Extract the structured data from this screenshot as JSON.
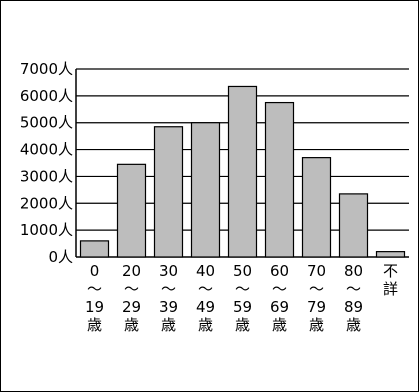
{
  "chart_data": {
    "type": "bar",
    "title": "",
    "xlabel": "",
    "ylabel": "",
    "ylim": [
      0,
      7000
    ],
    "yticks": [
      0,
      1000,
      2000,
      3000,
      4000,
      5000,
      6000,
      7000
    ],
    "ytick_labels": [
      "0人",
      "1000人",
      "2000人",
      "3000人",
      "4000人",
      "5000人",
      "6000人",
      "7000人"
    ],
    "grid": true,
    "legend": "none",
    "categories": [
      "0〜19歳",
      "20〜29歳",
      "30〜39歳",
      "40〜49歳",
      "50〜59歳",
      "60〜69歳",
      "70〜79歳",
      "80〜89歳",
      "不詳"
    ],
    "category_label_lines": [
      [
        "0",
        "〜",
        "19",
        "歳"
      ],
      [
        "20",
        "〜",
        "29",
        "歳"
      ],
      [
        "30",
        "〜",
        "39",
        "歳"
      ],
      [
        "40",
        "〜",
        "49",
        "歳"
      ],
      [
        "50",
        "〜",
        "59",
        "歳"
      ],
      [
        "60",
        "〜",
        "69",
        "歳"
      ],
      [
        "70",
        "〜",
        "79",
        "歳"
      ],
      [
        "80",
        "〜",
        "89",
        "歳"
      ],
      [
        "不",
        "詳"
      ]
    ],
    "values": [
      600,
      3450,
      4850,
      5000,
      6350,
      5750,
      3700,
      2350,
      200
    ],
    "colors": {
      "bar_fill": "#bdbdbd",
      "bar_stroke": "#000000",
      "grid": "#000000"
    }
  }
}
